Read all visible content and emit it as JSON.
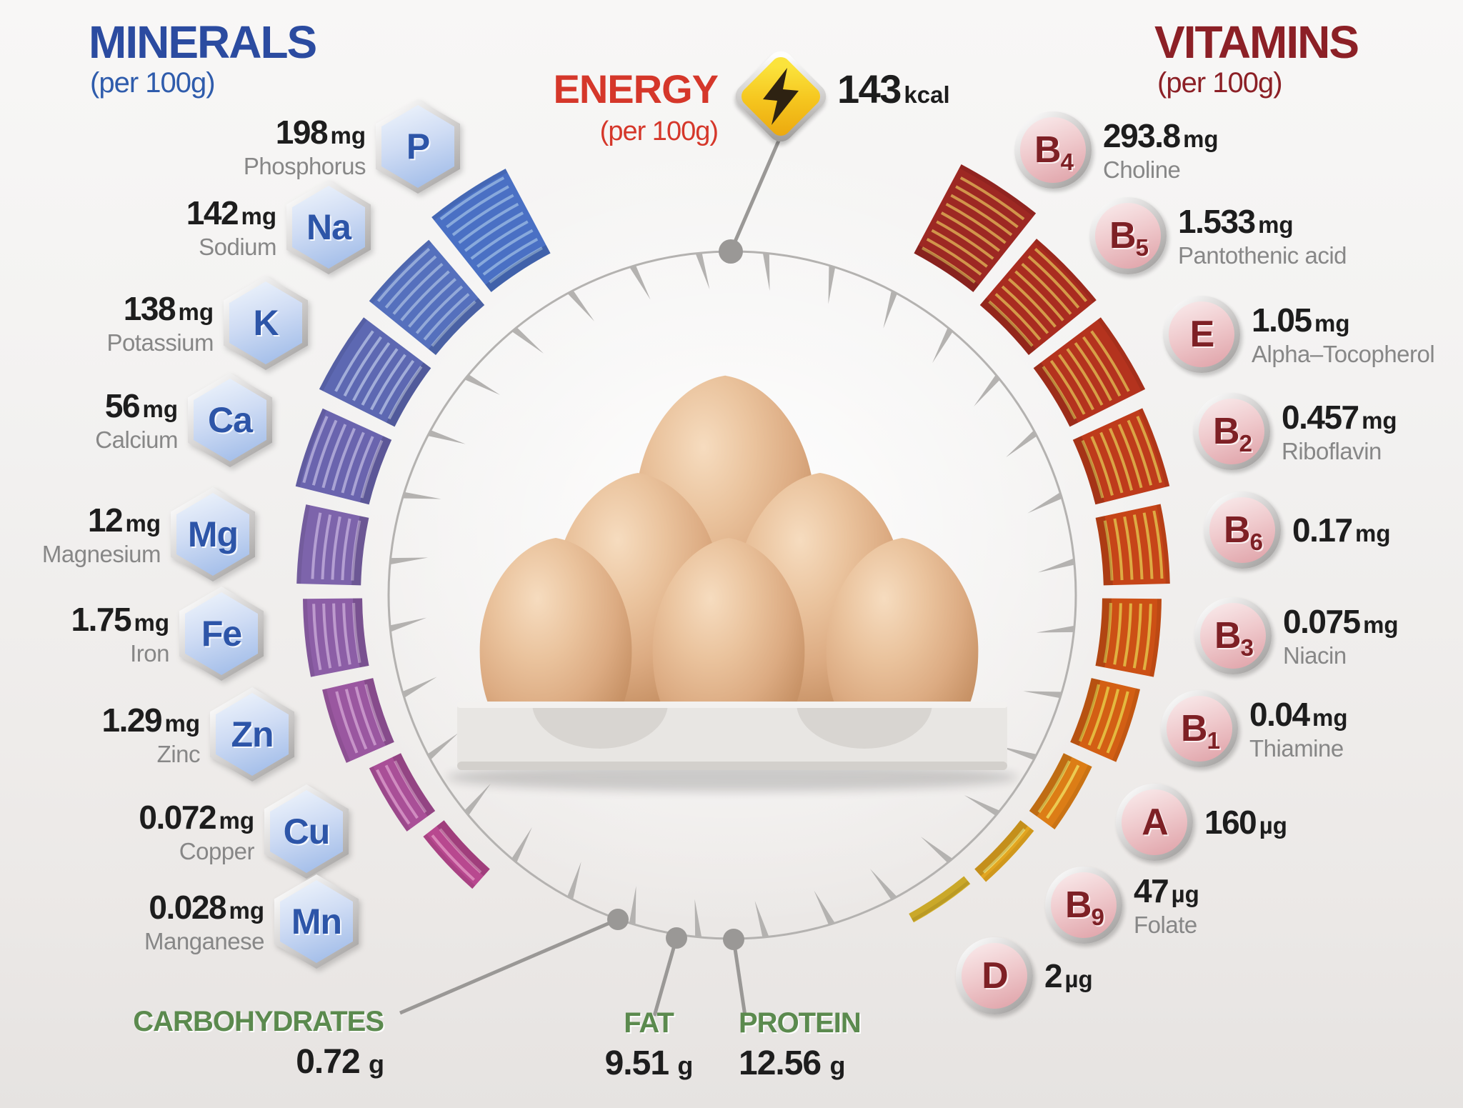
{
  "minerals": {
    "title": "MINERALS",
    "subtitle": "(per 100g)",
    "accent_color": "#2b4ba0",
    "items": [
      {
        "symbol": "P",
        "value": "198",
        "unit": "mg",
        "label": "Phosphorus"
      },
      {
        "symbol": "Na",
        "value": "142",
        "unit": "mg",
        "label": "Sodium"
      },
      {
        "symbol": "K",
        "value": "138",
        "unit": "mg",
        "label": "Potassium"
      },
      {
        "symbol": "Ca",
        "value": "56",
        "unit": "mg",
        "label": "Calcium"
      },
      {
        "symbol": "Mg",
        "value": "12",
        "unit": "mg",
        "label": "Magnesium"
      },
      {
        "symbol": "Fe",
        "value": "1.75",
        "unit": "mg",
        "label": "Iron"
      },
      {
        "symbol": "Zn",
        "value": "1.29",
        "unit": "mg",
        "label": "Zinc"
      },
      {
        "symbol": "Cu",
        "value": "0.072",
        "unit": "mg",
        "label": "Copper"
      },
      {
        "symbol": "Mn",
        "value": "0.028",
        "unit": "mg",
        "label": "Manganese"
      }
    ]
  },
  "vitamins": {
    "title": "VITAMINS",
    "subtitle": "(per 100g)",
    "accent_color": "#8c2026",
    "items": [
      {
        "sym": "B",
        "sub": "4",
        "value": "293.8",
        "unit": "mg",
        "label": "Choline"
      },
      {
        "sym": "B",
        "sub": "5",
        "value": "1.533",
        "unit": "mg",
        "label": "Pantothenic acid"
      },
      {
        "sym": "E",
        "sub": "",
        "value": "1.05",
        "unit": "mg",
        "label": "Alpha–Tocopherol"
      },
      {
        "sym": "B",
        "sub": "2",
        "value": "0.457",
        "unit": "mg",
        "label": "Riboflavin"
      },
      {
        "sym": "B",
        "sub": "6",
        "value": "0.17",
        "unit": "mg",
        "label": ""
      },
      {
        "sym": "B",
        "sub": "3",
        "value": "0.075",
        "unit": "mg",
        "label": "Niacin"
      },
      {
        "sym": "B",
        "sub": "1",
        "value": "0.04",
        "unit": "mg",
        "label": "Thiamine"
      },
      {
        "sym": "A",
        "sub": "",
        "value": "160",
        "unit": "µg",
        "label": ""
      },
      {
        "sym": "B",
        "sub": "9",
        "value": "47",
        "unit": "µg",
        "label": "Folate"
      },
      {
        "sym": "D",
        "sub": "",
        "value": "2",
        "unit": "µg",
        "label": ""
      }
    ]
  },
  "energy": {
    "title": "ENERGY",
    "subtitle": "(per 100g)",
    "value": "143",
    "unit": "kcal",
    "accent_color": "#d5372a"
  },
  "macros": {
    "accent_color": "#5b8a4e",
    "items": [
      {
        "label": "CARBOHYDRATES",
        "value": "0.72",
        "unit": "g"
      },
      {
        "label": "FAT",
        "value": "9.51",
        "unit": "g"
      },
      {
        "label": "PROTEIN",
        "value": "12.56",
        "unit": "g"
      }
    ]
  },
  "chart_data": {
    "type": "radial-bar",
    "title": "Egg nutrition facts (per 100g)",
    "energy_kcal": 143,
    "macronutrients_g": {
      "carbohydrates": 0.72,
      "fat": 9.51,
      "protein": 12.56
    },
    "minerals_mg": {
      "phosphorus": 198,
      "sodium": 142,
      "potassium": 138,
      "calcium": 56,
      "magnesium": 12,
      "iron": 1.75,
      "zinc": 1.29,
      "copper": 0.072,
      "manganese": 0.028
    },
    "vitamins": {
      "B4_choline_mg": 293.8,
      "B5_pantothenic_acid_mg": 1.533,
      "E_alpha_tocopherol_mg": 1.05,
      "B2_riboflavin_mg": 0.457,
      "B6_mg": 0.17,
      "B3_niacin_mg": 0.075,
      "B1_thiamine_mg": 0.04,
      "A_ug": 160,
      "B9_folate_ug": 47,
      "D_ug": 2
    },
    "wheel": {
      "center": [
        1025,
        833
      ],
      "radius": 481,
      "ring_color": "#b4b2b0",
      "connector_color": "#9a9896",
      "ticks": {
        "count": 32,
        "offset": 5.625,
        "len": 52
      },
      "mineral_segments": [
        {
          "name": "P",
          "a": [
            -38.5,
            -28
          ],
          "r": [
            542,
            676
          ],
          "fill": "#4a70c4",
          "stripe": "#88a9dc"
        },
        {
          "name": "Na",
          "a": [
            -51,
            -40.5
          ],
          "r": [
            534,
            654
          ],
          "fill": "#5570bd",
          "stripe": "#93a9d8"
        },
        {
          "name": "K",
          "a": [
            -63.5,
            -53
          ],
          "r": [
            528,
            646
          ],
          "fill": "#5d68b2",
          "stripe": "#a2add9"
        },
        {
          "name": "Ca",
          "a": [
            -76,
            -65.5
          ],
          "r": [
            524,
            630
          ],
          "fill": "#6a64ae",
          "stripe": "#a9a3d4"
        },
        {
          "name": "Mg",
          "a": [
            -88.5,
            -78
          ],
          "r": [
            520,
            610
          ],
          "fill": "#7d64ab",
          "stripe": "#b49fd2"
        },
        {
          "name": "Fe",
          "a": [
            -101,
            -90.5
          ],
          "r": [
            518,
            601
          ],
          "fill": "#8c5ea6",
          "stripe": "#bd9acd"
        },
        {
          "name": "Zn",
          "a": [
            -113.5,
            -103
          ],
          "r": [
            516,
            589
          ],
          "fill": "#9a57a0",
          "stripe": "#c693c8"
        },
        {
          "name": "Cu",
          "a": [
            -126,
            -115.5
          ],
          "r": [
            514,
            563
          ],
          "fill": "#a94f97",
          "stripe": "#d08cc0"
        },
        {
          "name": "Mn",
          "a": [
            -138.5,
            -128
          ],
          "r": [
            512,
            549
          ],
          "fill": "#b8488f",
          "stripe": "#d986b8"
        }
      ],
      "vitamin_segments": [
        {
          "name": "B4",
          "a": [
            28,
            38.5
          ],
          "r": [
            542,
            683
          ],
          "fill": "#9d2823",
          "stripe": "#d1954b"
        },
        {
          "name": "B5",
          "a": [
            40.5,
            51
          ],
          "r": [
            534,
            656
          ],
          "fill": "#a92c20",
          "stripe": "#d49a49"
        },
        {
          "name": "E",
          "a": [
            53,
            63.5
          ],
          "r": [
            528,
            646
          ],
          "fill": "#b4331e",
          "stripe": "#d79f47"
        },
        {
          "name": "B2",
          "a": [
            65.5,
            76
          ],
          "r": [
            524,
            631
          ],
          "fill": "#be3b1b",
          "stripe": "#daa445"
        },
        {
          "name": "B6",
          "a": [
            78,
            88.5
          ],
          "r": [
            520,
            613
          ],
          "fill": "#c64518",
          "stripe": "#ddaa43"
        },
        {
          "name": "B3",
          "a": [
            90.5,
            101
          ],
          "r": [
            518,
            601
          ],
          "fill": "#cc5015",
          "stripe": "#e0b041"
        },
        {
          "name": "B1",
          "a": [
            103,
            113.5
          ],
          "r": [
            516,
            586
          ],
          "fill": "#d35f14",
          "stripe": "#e4b93f"
        },
        {
          "name": "A",
          "a": [
            115.5,
            126
          ],
          "r": [
            514,
            558
          ],
          "fill": "#dc7d16",
          "stripe": "#eccb52"
        },
        {
          "name": "B9",
          "a": [
            128,
            138.5
          ],
          "r": [
            512,
            536
          ],
          "fill": "#e2a520",
          "stripe": "#f2dc6a"
        },
        {
          "name": "D",
          "a": [
            140.5,
            151
          ],
          "r": [
            510,
            524
          ],
          "fill": "#e9c230",
          "stripe": "#f6e88a"
        }
      ],
      "dots": [
        [
          1023,
          352,
          17
        ],
        [
          865,
          1287,
          15
        ],
        [
          947,
          1313,
          15
        ],
        [
          1027,
          1315,
          15
        ]
      ],
      "connectors": [
        [
          [
            1090,
            197
          ],
          [
            1023,
            352
          ]
        ],
        [
          [
            865,
            1287
          ],
          [
            560,
            1418
          ]
        ],
        [
          [
            947,
            1313
          ],
          [
            916,
            1422
          ]
        ],
        [
          [
            1027,
            1315
          ],
          [
            1043,
            1422
          ]
        ]
      ]
    }
  }
}
